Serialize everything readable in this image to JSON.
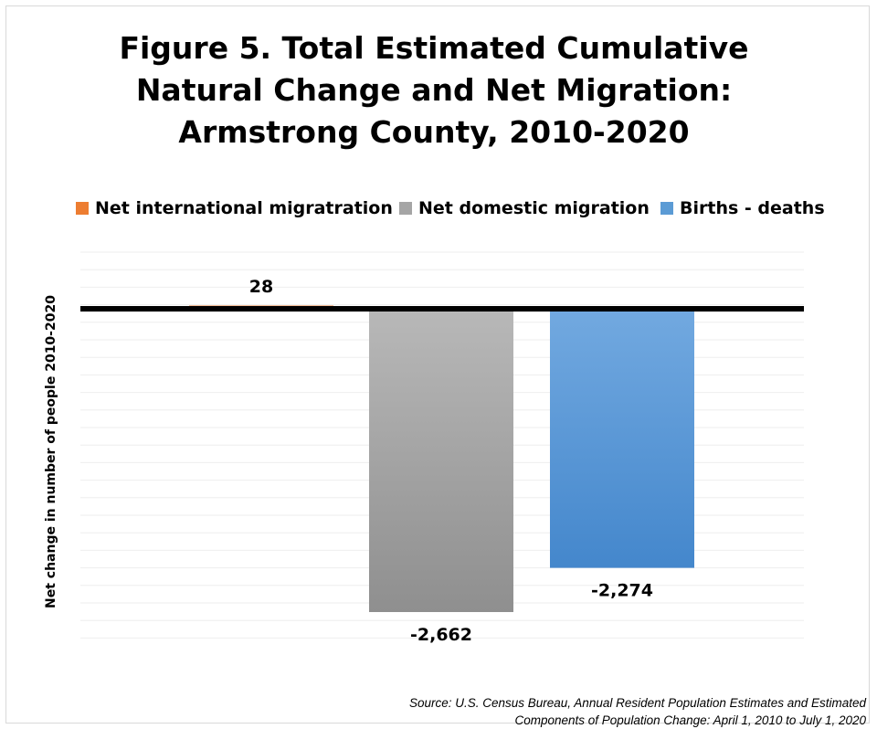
{
  "title_lines": [
    "Figure 5. Total Estimated Cumulative",
    "Natural Change and Net Migration:",
    "Armstrong County, 2010-2020"
  ],
  "source_lines": [
    "Source: U.S. Census Bureau, Annual Resident Population Estimates and Estimated",
    "Components of Population Change: April 1, 2010 to July 1, 2020"
  ],
  "chart_data": {
    "type": "bar",
    "title": "Figure 5. Total Estimated Cumulative Natural Change and Net Migration: Armstrong County, 2010-2020",
    "ylabel": "Net change in number of people 2010-2020",
    "legend_position": "top",
    "grid": true,
    "series": [
      {
        "name": "Net international migratration",
        "value": 28,
        "label": "28",
        "color": "#ED7D31"
      },
      {
        "name": "Net domestic migration",
        "value": -2662,
        "label": "-2,662",
        "color": "#A5A5A5"
      },
      {
        "name": "Births  - deaths",
        "value": -2274,
        "label": "-2,274",
        "color": "#5B9BD5"
      }
    ],
    "ylim": [
      -3000,
      400
    ]
  }
}
